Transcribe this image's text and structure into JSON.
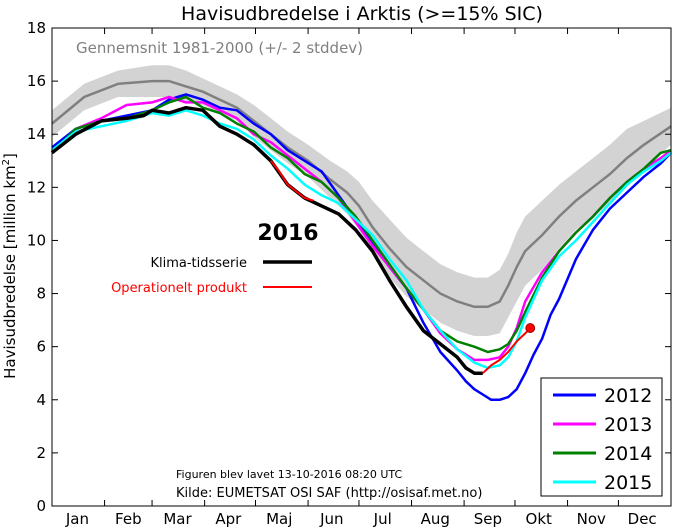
{
  "chart_data": {
    "type": "line",
    "title": "Havisudbredelse i Arktis (>=15% SIC)",
    "ylabel": "Havisudbredelse [million km",
    "ylabel_sup": "2",
    "ylabel_end": "]",
    "xlim": [
      1,
      366
    ],
    "ylim": [
      0,
      18
    ],
    "yticks": [
      0,
      2,
      4,
      6,
      8,
      10,
      12,
      14,
      16,
      18
    ],
    "month_labels": [
      {
        "label": "Jan",
        "day": 16
      },
      {
        "label": "Feb",
        "day": 46
      },
      {
        "label": "Mar",
        "day": 75
      },
      {
        "label": "Apr",
        "day": 105
      },
      {
        "label": "Maj",
        "day": 135
      },
      {
        "label": "Jun",
        "day": 166
      },
      {
        "label": "Jul",
        "day": 196
      },
      {
        "label": "Aug",
        "day": 227
      },
      {
        "label": "Sep",
        "day": 258
      },
      {
        "label": "Okt",
        "day": 288
      },
      {
        "label": "Nov",
        "day": 319
      },
      {
        "label": "Dec",
        "day": 349
      }
    ],
    "month_starts": [
      1,
      32,
      60,
      91,
      121,
      152,
      182,
      213,
      244,
      274,
      305,
      335,
      366
    ],
    "average_note": "Gennemsnit 1981-2000 (+/- 2 stddev)",
    "average": {
      "color": "#808080",
      "days": [
        1,
        20,
        40,
        60,
        70,
        80,
        90,
        100,
        110,
        120,
        130,
        140,
        152,
        165,
        175,
        182,
        190,
        200,
        210,
        220,
        230,
        240,
        250,
        258,
        265,
        270,
        275,
        280,
        285,
        290,
        300,
        310,
        320,
        330,
        340,
        350,
        366
      ],
      "values": [
        14.4,
        15.4,
        15.9,
        16.0,
        16.0,
        15.8,
        15.6,
        15.3,
        15.0,
        14.5,
        14.0,
        13.5,
        13.0,
        12.3,
        11.8,
        11.3,
        10.5,
        9.7,
        9.0,
        8.5,
        8.0,
        7.7,
        7.5,
        7.5,
        7.7,
        8.3,
        9.0,
        9.6,
        9.9,
        10.2,
        10.9,
        11.5,
        12.0,
        12.5,
        13.1,
        13.6,
        14.3
      ],
      "upper": [
        14.9,
        15.9,
        16.4,
        16.6,
        16.6,
        16.4,
        16.1,
        15.8,
        15.5,
        15.1,
        14.6,
        14.1,
        13.6,
        13.0,
        12.6,
        12.2,
        11.5,
        10.8,
        10.1,
        9.6,
        9.1,
        8.8,
        8.6,
        8.6,
        8.9,
        9.5,
        10.3,
        10.9,
        11.2,
        11.5,
        12.1,
        12.6,
        13.1,
        13.6,
        14.2,
        14.5,
        15.0
      ],
      "lower": [
        13.9,
        14.9,
        15.4,
        15.4,
        15.4,
        15.2,
        15.1,
        14.8,
        14.5,
        13.9,
        13.4,
        12.9,
        12.4,
        11.6,
        11.0,
        10.4,
        9.5,
        8.6,
        7.9,
        7.4,
        6.9,
        6.6,
        6.4,
        6.4,
        6.5,
        7.1,
        7.7,
        8.3,
        8.6,
        8.9,
        9.7,
        10.4,
        10.9,
        11.4,
        12.0,
        12.7,
        13.6
      ]
    },
    "series": [
      {
        "name": "2012",
        "color": "#0000ff",
        "days": [
          1,
          15,
          30,
          45,
          60,
          70,
          75,
          80,
          90,
          100,
          110,
          120,
          130,
          140,
          150,
          160,
          170,
          180,
          190,
          200,
          210,
          220,
          230,
          240,
          245,
          250,
          255,
          260,
          265,
          270,
          275,
          280,
          285,
          290,
          295,
          300,
          310,
          320,
          330,
          340,
          350,
          360,
          366
        ],
        "values": [
          13.5,
          14.2,
          14.5,
          14.7,
          14.9,
          15.3,
          15.4,
          15.5,
          15.3,
          15.0,
          14.9,
          14.4,
          14.0,
          13.4,
          13.0,
          12.6,
          11.7,
          10.8,
          9.9,
          9.0,
          8.2,
          6.9,
          5.8,
          5.1,
          4.7,
          4.4,
          4.2,
          4.0,
          4.0,
          4.1,
          4.4,
          5.0,
          5.7,
          6.3,
          7.2,
          7.8,
          9.3,
          10.4,
          11.2,
          11.8,
          12.4,
          12.9,
          13.3
        ]
      },
      {
        "name": "2013",
        "color": "#ff00ff",
        "days": [
          1,
          15,
          30,
          45,
          60,
          70,
          80,
          90,
          100,
          110,
          120,
          130,
          140,
          150,
          160,
          170,
          180,
          190,
          200,
          210,
          220,
          230,
          240,
          250,
          258,
          265,
          270,
          275,
          280,
          290,
          300,
          310,
          320,
          330,
          340,
          350,
          360,
          366
        ],
        "values": [
          13.3,
          14.2,
          14.6,
          15.1,
          15.2,
          15.4,
          15.2,
          15.2,
          14.9,
          14.6,
          14.0,
          13.7,
          13.2,
          12.7,
          12.2,
          11.6,
          10.7,
          9.8,
          9.0,
          8.2,
          7.4,
          6.5,
          5.9,
          5.5,
          5.5,
          5.6,
          6.0,
          6.7,
          7.7,
          8.8,
          9.6,
          10.3,
          10.9,
          11.6,
          12.2,
          12.7,
          13.1,
          13.4
        ]
      },
      {
        "name": "2014",
        "color": "#008000",
        "days": [
          1,
          15,
          30,
          45,
          60,
          70,
          80,
          90,
          100,
          110,
          120,
          130,
          140,
          150,
          160,
          170,
          180,
          190,
          200,
          210,
          220,
          230,
          240,
          250,
          258,
          265,
          270,
          275,
          280,
          290,
          300,
          310,
          320,
          330,
          340,
          350,
          360,
          366
        ],
        "values": [
          13.3,
          14.2,
          14.5,
          14.6,
          14.9,
          15.2,
          15.4,
          15.0,
          14.8,
          14.4,
          14.1,
          13.5,
          13.1,
          12.5,
          12.2,
          11.6,
          10.9,
          10.0,
          9.1,
          8.2,
          7.4,
          6.6,
          6.2,
          6.0,
          5.8,
          5.9,
          6.1,
          6.6,
          7.3,
          8.6,
          9.6,
          10.3,
          10.9,
          11.6,
          12.2,
          12.7,
          13.3,
          13.4
        ]
      },
      {
        "name": "2015",
        "color": "#00ffff",
        "days": [
          1,
          15,
          30,
          45,
          60,
          70,
          80,
          90,
          100,
          110,
          120,
          130,
          140,
          150,
          160,
          170,
          180,
          190,
          200,
          210,
          220,
          230,
          240,
          250,
          258,
          265,
          270,
          275,
          280,
          290,
          300,
          310,
          320,
          330,
          340,
          350,
          360,
          366
        ],
        "values": [
          13.4,
          14.1,
          14.3,
          14.5,
          14.8,
          14.7,
          14.9,
          14.7,
          14.4,
          14.2,
          13.8,
          13.2,
          12.7,
          12.1,
          11.7,
          11.4,
          10.8,
          10.2,
          9.3,
          8.5,
          7.4,
          6.6,
          5.9,
          5.4,
          5.2,
          5.3,
          5.6,
          6.2,
          7.1,
          8.5,
          9.4,
          10.0,
          10.7,
          11.4,
          12.1,
          12.6,
          13.0,
          13.3
        ]
      }
    ],
    "year2016": {
      "label": "2016",
      "klima": {
        "name": "Klima-tidsserie",
        "color": "#000000",
        "days": [
          1,
          15,
          30,
          45,
          55,
          60,
          70,
          80,
          90,
          100,
          110,
          120,
          130,
          140,
          150,
          160,
          170,
          180,
          190,
          200,
          210,
          220,
          230,
          240,
          245,
          250,
          255
        ],
        "values": [
          13.3,
          14.0,
          14.5,
          14.6,
          14.7,
          14.9,
          14.8,
          15.0,
          14.9,
          14.3,
          14.0,
          13.6,
          13.0,
          12.1,
          11.6,
          11.3,
          11.0,
          10.4,
          9.6,
          8.5,
          7.5,
          6.6,
          6.1,
          5.6,
          5.2,
          5.0,
          5.0
        ]
      },
      "operationel": {
        "name": "Operationelt produkt",
        "color": "#ff0000",
        "days": [
          130,
          135,
          140,
          150,
          155,
          255,
          260,
          265,
          270,
          275,
          280,
          283
        ],
        "values": [
          13.0,
          12.6,
          12.1,
          11.6,
          11.5,
          5.0,
          5.3,
          5.5,
          5.8,
          6.2,
          6.5,
          6.7
        ],
        "last_day": 283,
        "last_value": 6.7
      }
    },
    "footer_created": "Figuren blev lavet 13-10-2016 08:20 UTC",
    "footer_source": "Kilde: EUMETSAT OSI SAF (http://osisaf.met.no)",
    "grid": false,
    "legend_position": "bottom-right"
  }
}
